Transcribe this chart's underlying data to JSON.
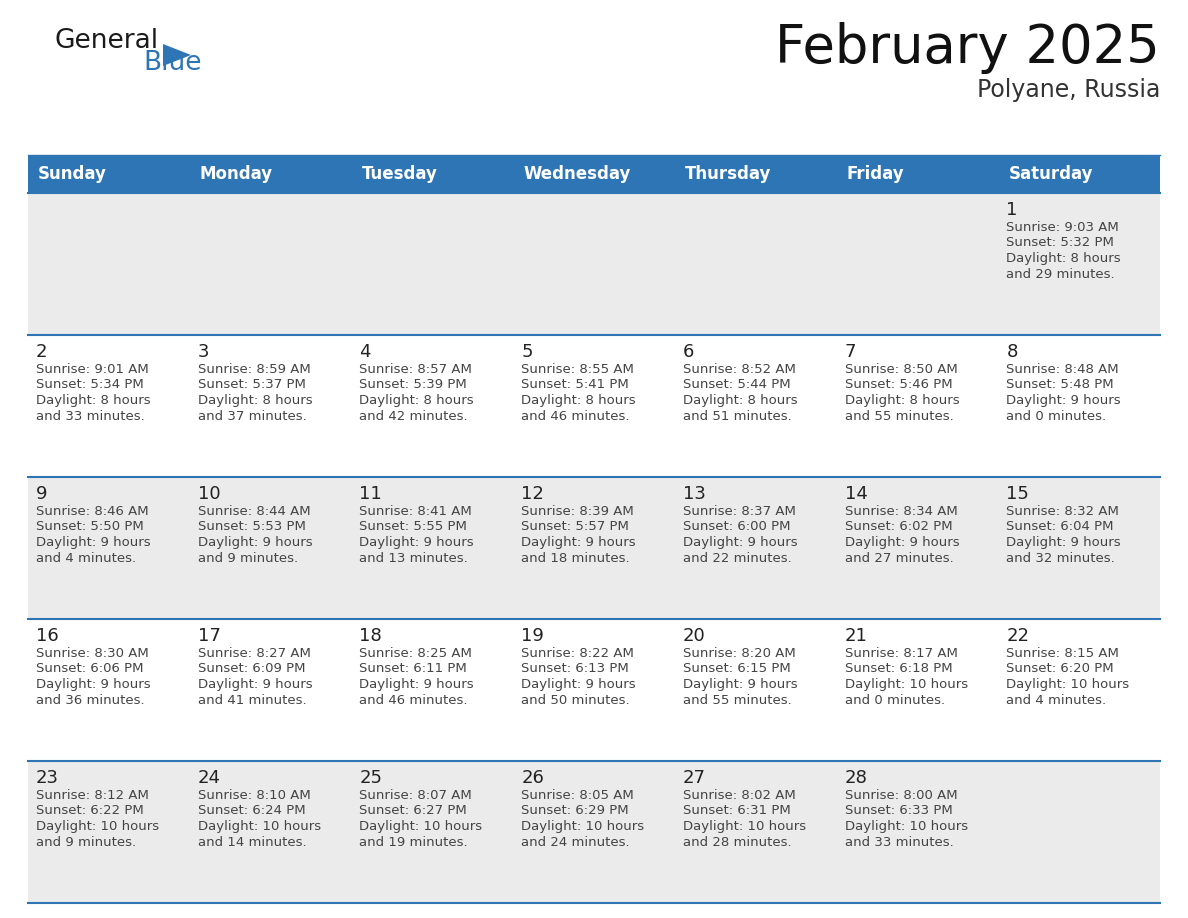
{
  "title": "February 2025",
  "subtitle": "Polyane, Russia",
  "header_bg": "#2E75B6",
  "header_text_color": "#FFFFFF",
  "day_names": [
    "Sunday",
    "Monday",
    "Tuesday",
    "Wednesday",
    "Thursday",
    "Friday",
    "Saturday"
  ],
  "background_color": "#FFFFFF",
  "row_odd_color": "#EBEBEB",
  "row_even_color": "#FFFFFF",
  "cell_border_color": "#2E75B6",
  "date_text_color": "#222222",
  "info_text_color": "#444444",
  "logo_general_color": "#1a1a1a",
  "logo_blue_color": "#2E75B6",
  "logo_triangle_color": "#2E75B6",
  "calendar_data": [
    [
      null,
      null,
      null,
      null,
      null,
      null,
      {
        "day": 1,
        "sunrise": "9:03 AM",
        "sunset": "5:32 PM",
        "daylight": "8 hours and 29 minutes."
      }
    ],
    [
      {
        "day": 2,
        "sunrise": "9:01 AM",
        "sunset": "5:34 PM",
        "daylight": "8 hours and 33 minutes."
      },
      {
        "day": 3,
        "sunrise": "8:59 AM",
        "sunset": "5:37 PM",
        "daylight": "8 hours and 37 minutes."
      },
      {
        "day": 4,
        "sunrise": "8:57 AM",
        "sunset": "5:39 PM",
        "daylight": "8 hours and 42 minutes."
      },
      {
        "day": 5,
        "sunrise": "8:55 AM",
        "sunset": "5:41 PM",
        "daylight": "8 hours and 46 minutes."
      },
      {
        "day": 6,
        "sunrise": "8:52 AM",
        "sunset": "5:44 PM",
        "daylight": "8 hours and 51 minutes."
      },
      {
        "day": 7,
        "sunrise": "8:50 AM",
        "sunset": "5:46 PM",
        "daylight": "8 hours and 55 minutes."
      },
      {
        "day": 8,
        "sunrise": "8:48 AM",
        "sunset": "5:48 PM",
        "daylight": "9 hours and 0 minutes."
      }
    ],
    [
      {
        "day": 9,
        "sunrise": "8:46 AM",
        "sunset": "5:50 PM",
        "daylight": "9 hours and 4 minutes."
      },
      {
        "day": 10,
        "sunrise": "8:44 AM",
        "sunset": "5:53 PM",
        "daylight": "9 hours and 9 minutes."
      },
      {
        "day": 11,
        "sunrise": "8:41 AM",
        "sunset": "5:55 PM",
        "daylight": "9 hours and 13 minutes."
      },
      {
        "day": 12,
        "sunrise": "8:39 AM",
        "sunset": "5:57 PM",
        "daylight": "9 hours and 18 minutes."
      },
      {
        "day": 13,
        "sunrise": "8:37 AM",
        "sunset": "6:00 PM",
        "daylight": "9 hours and 22 minutes."
      },
      {
        "day": 14,
        "sunrise": "8:34 AM",
        "sunset": "6:02 PM",
        "daylight": "9 hours and 27 minutes."
      },
      {
        "day": 15,
        "sunrise": "8:32 AM",
        "sunset": "6:04 PM",
        "daylight": "9 hours and 32 minutes."
      }
    ],
    [
      {
        "day": 16,
        "sunrise": "8:30 AM",
        "sunset": "6:06 PM",
        "daylight": "9 hours and 36 minutes."
      },
      {
        "day": 17,
        "sunrise": "8:27 AM",
        "sunset": "6:09 PM",
        "daylight": "9 hours and 41 minutes."
      },
      {
        "day": 18,
        "sunrise": "8:25 AM",
        "sunset": "6:11 PM",
        "daylight": "9 hours and 46 minutes."
      },
      {
        "day": 19,
        "sunrise": "8:22 AM",
        "sunset": "6:13 PM",
        "daylight": "9 hours and 50 minutes."
      },
      {
        "day": 20,
        "sunrise": "8:20 AM",
        "sunset": "6:15 PM",
        "daylight": "9 hours and 55 minutes."
      },
      {
        "day": 21,
        "sunrise": "8:17 AM",
        "sunset": "6:18 PM",
        "daylight": "10 hours and 0 minutes."
      },
      {
        "day": 22,
        "sunrise": "8:15 AM",
        "sunset": "6:20 PM",
        "daylight": "10 hours and 4 minutes."
      }
    ],
    [
      {
        "day": 23,
        "sunrise": "8:12 AM",
        "sunset": "6:22 PM",
        "daylight": "10 hours and 9 minutes."
      },
      {
        "day": 24,
        "sunrise": "8:10 AM",
        "sunset": "6:24 PM",
        "daylight": "10 hours and 14 minutes."
      },
      {
        "day": 25,
        "sunrise": "8:07 AM",
        "sunset": "6:27 PM",
        "daylight": "10 hours and 19 minutes."
      },
      {
        "day": 26,
        "sunrise": "8:05 AM",
        "sunset": "6:29 PM",
        "daylight": "10 hours and 24 minutes."
      },
      {
        "day": 27,
        "sunrise": "8:02 AM",
        "sunset": "6:31 PM",
        "daylight": "10 hours and 28 minutes."
      },
      {
        "day": 28,
        "sunrise": "8:00 AM",
        "sunset": "6:33 PM",
        "daylight": "10 hours and 33 minutes."
      },
      null
    ]
  ]
}
